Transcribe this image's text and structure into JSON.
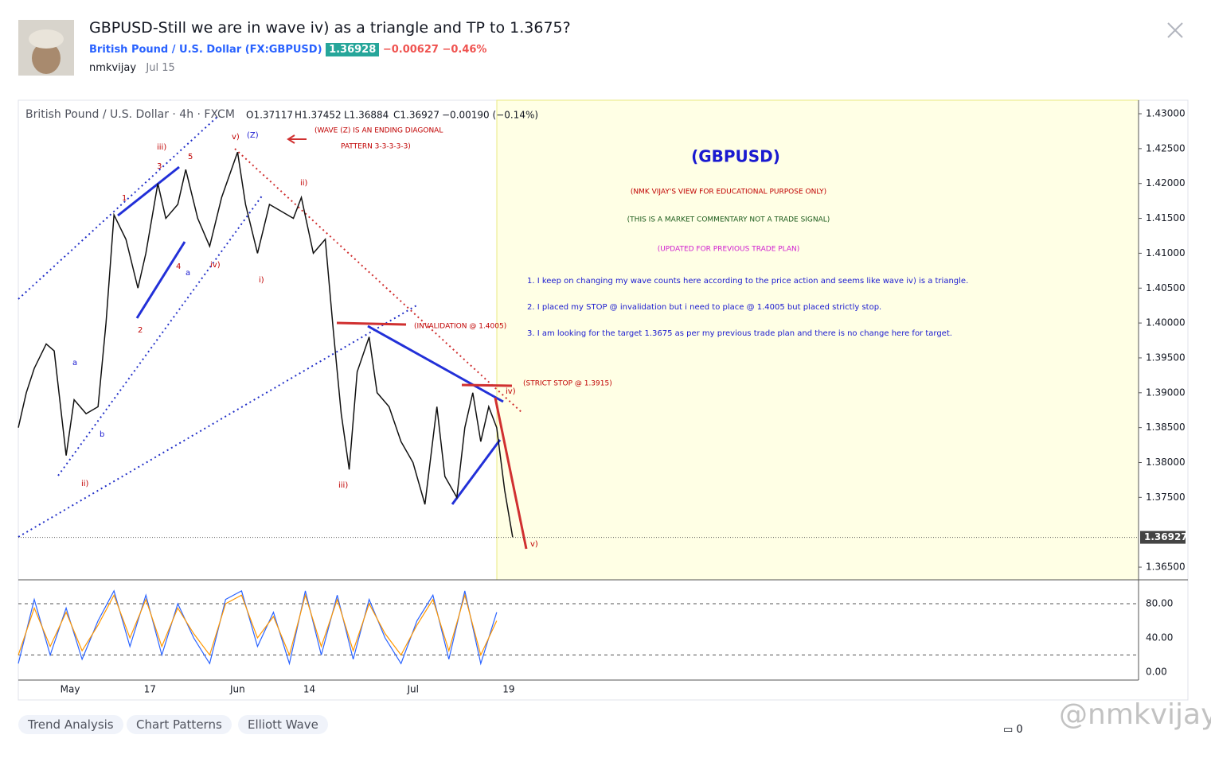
{
  "header": {
    "title": "GBPUSD-Still we are in wave iv) as a triangle and TP to 1.3675?",
    "symbol": "British Pound / U.S. Dollar",
    "exchange": "(FX:GBPUSD)",
    "price": "1.36928",
    "change": "−0.00627",
    "change_pct": "−0.46%",
    "author": "nmkvijay",
    "date": "Jul 15"
  },
  "legend": {
    "name": "British Pound / U.S. Dollar · 4h · FXCM",
    "ohlc": [
      "O1.37117",
      "H1.37452",
      "L1.36884",
      "C1.36927",
      "−0.00190 (−0.14%)"
    ]
  },
  "notes": {
    "heading": "(GBPUSD)",
    "lines": [
      "(NMK VIJAY'S VIEW FOR EDUCATIONAL PURPOSE ONLY)",
      "(THIS IS A MARKET COMMENTARY NOT A TRADE SIGNAL)",
      "(UPDATED FOR PREVIOUS TRADE PLAN)"
    ],
    "points": [
      "1. I keep on changing my wave counts here according to the price action and seems like wave iv) is a triangle.",
      "2. I placed my STOP @ invalidation but i need to place @ 1.4005 but placed strictly stop.",
      "3. I am looking for the target 1.3675 as per my previous trade plan and there is no change here for target."
    ]
  },
  "annotations": [
    "(WAVE (Z) IS AN ENDING DIAGONAL",
    "PATTERN 3-3-3-3-3)",
    "(INVALIDATION @ 1.4005)",
    "(STRICT STOP @ 1.3915)"
  ],
  "waves": [
    "iii)",
    "5",
    "3",
    "1",
    "v)",
    "(Z)",
    "ii)",
    "i)",
    "iv)",
    "4",
    "a",
    "2",
    "a",
    "b",
    "ii)",
    "iii)",
    "iv)",
    "v)"
  ],
  "chart_data": {
    "type": "line",
    "xlim": [
      0,
      281
    ],
    "ylim": [
      1.36318,
      1.43194
    ],
    "x": [
      0,
      2,
      4,
      7,
      9,
      12,
      14,
      17,
      20,
      22,
      24,
      27,
      30,
      32,
      35,
      37,
      40,
      42,
      45,
      48,
      51,
      55,
      57,
      60,
      63,
      66,
      69,
      71,
      74,
      77,
      79,
      81,
      83,
      85,
      88,
      90,
      93,
      96,
      99,
      102,
      105,
      107,
      110,
      112,
      114,
      116,
      118,
      120,
      122,
      124
    ],
    "values": [
      1.385,
      1.39,
      1.3935,
      1.397,
      1.396,
      1.381,
      1.389,
      1.387,
      1.388,
      1.4,
      1.4155,
      1.412,
      1.405,
      1.41,
      1.42,
      1.415,
      1.417,
      1.422,
      1.415,
      1.411,
      1.418,
      1.4245,
      1.417,
      1.41,
      1.417,
      1.416,
      1.415,
      1.418,
      1.41,
      1.412,
      1.399,
      1.387,
      1.379,
      1.393,
      1.398,
      1.39,
      1.388,
      1.383,
      1.38,
      1.374,
      1.388,
      1.378,
      1.375,
      1.385,
      1.39,
      1.383,
      1.388,
      1.385,
      1.376,
      1.3693
    ],
    "color": "#111111",
    "yticks": [
      {
        "value": 1.43,
        "label": "1.43000"
      },
      {
        "value": 1.425,
        "label": "1.42500"
      },
      {
        "value": 1.42,
        "label": "1.42000"
      },
      {
        "value": 1.415,
        "label": "1.41500"
      },
      {
        "value": 1.41,
        "label": "1.41000"
      },
      {
        "value": 1.405,
        "label": "1.40500"
      },
      {
        "value": 1.4,
        "label": "1.40000"
      },
      {
        "value": 1.395,
        "label": "1.39500"
      },
      {
        "value": 1.39,
        "label": "1.39000"
      },
      {
        "value": 1.385,
        "label": "1.38500"
      },
      {
        "value": 1.38,
        "label": "1.38000"
      },
      {
        "value": 1.375,
        "label": "1.37500"
      },
      {
        "value": 1.365,
        "label": "1.36500"
      }
    ],
    "last_price": {
      "value": 1.36927,
      "label": "1.36927"
    },
    "xticks": [
      {
        "value": 13,
        "label": "May"
      },
      {
        "value": 33,
        "label": "17"
      },
      {
        "value": 55,
        "label": "Jun"
      },
      {
        "value": 73,
        "label": "14"
      },
      {
        "value": 99,
        "label": "Jul"
      },
      {
        "value": 123,
        "label": "19"
      }
    ],
    "oscillator": {
      "ylim": [
        -9.3,
        107
      ],
      "yticks": [
        {
          "value": 80,
          "label": "80.00"
        },
        {
          "value": 40,
          "label": "40.00"
        },
        {
          "value": 0,
          "label": "0.00"
        }
      ],
      "levels": [
        80,
        20
      ],
      "x": [
        0,
        4,
        8,
        12,
        16,
        20,
        24,
        28,
        32,
        36,
        40,
        44,
        48,
        52,
        56,
        60,
        64,
        68,
        72,
        76,
        80,
        84,
        88,
        92,
        96,
        100,
        104,
        108,
        112,
        116,
        120
      ],
      "series": [
        {
          "color": "#2962ff",
          "values": [
            10,
            85,
            20,
            75,
            15,
            60,
            95,
            30,
            90,
            20,
            80,
            40,
            10,
            85,
            95,
            30,
            70,
            10,
            95,
            20,
            90,
            15,
            85,
            40,
            10,
            60,
            90,
            15,
            95,
            10,
            70
          ]
        },
        {
          "color": "#ff9800",
          "values": [
            20,
            75,
            30,
            70,
            25,
            55,
            90,
            40,
            85,
            30,
            75,
            45,
            20,
            80,
            90,
            40,
            65,
            20,
            90,
            30,
            85,
            25,
            80,
            45,
            20,
            55,
            85,
            25,
            90,
            20,
            60
          ]
        }
      ]
    }
  },
  "tags": [
    "Trend Analysis",
    "Chart Patterns",
    "Elliott Wave"
  ],
  "comments": "0",
  "watermark": "@nmkvijay"
}
